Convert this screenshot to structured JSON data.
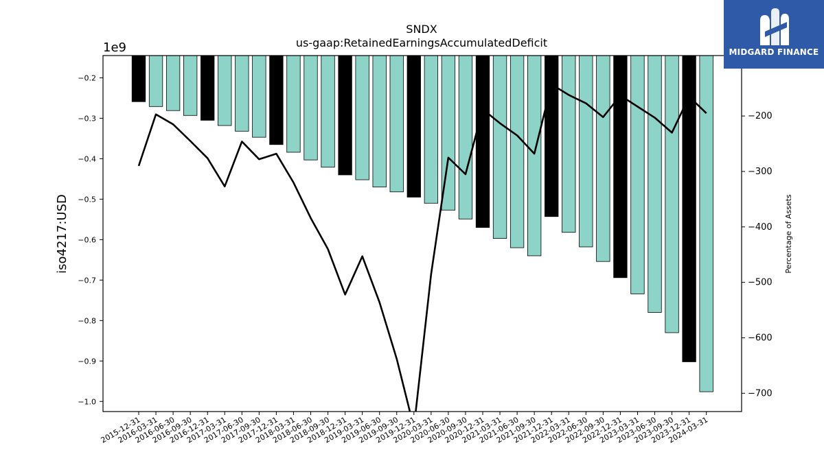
{
  "brand": {
    "name": "MIDGARD FINANCE"
  },
  "chart_data": {
    "type": "bar",
    "title": "SNDX",
    "subtitle": "us-gaap:RetainedEarningsAccumulatedDeficit",
    "ylabel": "iso4217:USD",
    "y_multiplier": "1e9",
    "y2label": "Percentage of Assets",
    "ylim": [
      -1.025,
      -0.145
    ],
    "y_ticks": [
      -1.0,
      -0.9,
      -0.8,
      -0.7,
      -0.6,
      -0.5,
      -0.4,
      -0.3,
      -0.2
    ],
    "y_tick_labels": [
      "−1.0",
      "−0.9",
      "−0.8",
      "−0.7",
      "−0.6",
      "−0.5",
      "−0.4",
      "−0.3",
      "−0.2"
    ],
    "y2lim": [
      -733,
      -91
    ],
    "y2_ticks": [
      -700,
      -600,
      -500,
      -400,
      -300,
      -200
    ],
    "y2_tick_labels": [
      "−700",
      "−600",
      "−500",
      "−400",
      "−300",
      "−200"
    ],
    "grid": false,
    "categories": [
      "2015-12-31",
      "2016-03-31",
      "2016-06-30",
      "2016-09-30",
      "2016-12-31",
      "2017-03-31",
      "2017-06-30",
      "2017-09-30",
      "2017-12-31",
      "2018-03-31",
      "2018-06-30",
      "2018-09-30",
      "2018-12-31",
      "2019-03-31",
      "2019-06-30",
      "2019-09-30",
      "2019-12-31",
      "2020-03-31",
      "2020-06-30",
      "2020-09-30",
      "2020-12-31",
      "2021-03-31",
      "2021-06-30",
      "2021-09-30",
      "2021-12-31",
      "2022-03-31",
      "2022-06-30",
      "2022-09-30",
      "2022-12-31",
      "2023-03-31",
      "2023-06-30",
      "2023-09-30",
      "2023-12-31",
      "2024-03-31"
    ],
    "series": [
      {
        "type": "bar",
        "values": [
          -0.259,
          -0.271,
          -0.281,
          -0.293,
          -0.305,
          -0.318,
          -0.332,
          -0.347,
          -0.365,
          -0.384,
          -0.403,
          -0.421,
          -0.44,
          -0.452,
          -0.47,
          -0.482,
          -0.495,
          -0.51,
          -0.527,
          -0.549,
          -0.57,
          -0.597,
          -0.62,
          -0.64,
          -0.543,
          -0.582,
          -0.618,
          -0.654,
          -0.694,
          -0.734,
          -0.78,
          -0.83,
          -0.902,
          -0.976
        ],
        "year_end_color": "#000000",
        "color": "#8dd3c7"
      },
      {
        "type": "line",
        "axis": "right",
        "color": "#000000",
        "values": [
          -290,
          -197,
          -215,
          -245,
          -276,
          -327,
          -246,
          -278,
          -268,
          -320,
          -384,
          -440,
          -522,
          -453,
          -536,
          -638,
          -762,
          -485,
          -275,
          -305,
          -188,
          -213,
          -235,
          -268,
          -143,
          -162,
          -177,
          -202,
          -163,
          -183,
          -203,
          -230,
          -165,
          -195
        ]
      }
    ]
  }
}
